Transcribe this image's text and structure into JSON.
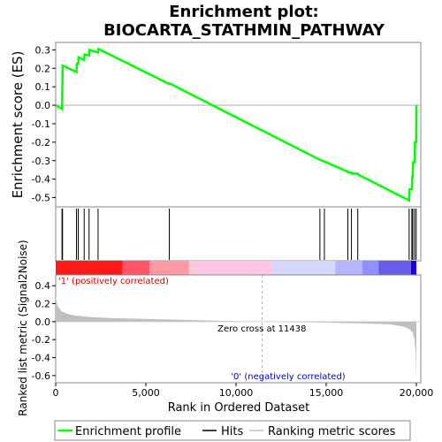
{
  "chart_data": {
    "type": "line",
    "title_line1": "Enrichment plot:",
    "title_line2": "BIOCARTA_STATHMIN_PATHWAY",
    "es_panel": {
      "ylabel": "Enrichment score (ES)",
      "ylim": [
        -0.55,
        0.34
      ],
      "yticks": [
        0.3,
        0.2,
        0.1,
        0.0,
        -0.1,
        -0.2,
        -0.3,
        -0.4,
        -0.5
      ],
      "ytick_labels": [
        "0.3",
        "0.2",
        "0.1",
        "0.0",
        "-0.1",
        "-0.2",
        "-0.3",
        "-0.4",
        "-0.5"
      ],
      "line_color": "#00ff00",
      "points": [
        [
          0,
          0.0
        ],
        [
          350,
          -0.02
        ],
        [
          360,
          0.02
        ],
        [
          380,
          0.215
        ],
        [
          1150,
          0.18
        ],
        [
          1170,
          0.225
        ],
        [
          1250,
          0.225
        ],
        [
          1270,
          0.26
        ],
        [
          1580,
          0.245
        ],
        [
          1600,
          0.275
        ],
        [
          1850,
          0.27
        ],
        [
          1870,
          0.3
        ],
        [
          2350,
          0.285
        ],
        [
          2370,
          0.305
        ],
        [
          6300,
          0.115
        ],
        [
          6320,
          0.118
        ],
        [
          14650,
          -0.295
        ],
        [
          14900,
          -0.305
        ],
        [
          14920,
          -0.305
        ],
        [
          16200,
          -0.36
        ],
        [
          16220,
          -0.365
        ],
        [
          16400,
          -0.365
        ],
        [
          16420,
          -0.37
        ],
        [
          16750,
          -0.37
        ],
        [
          16770,
          -0.375
        ],
        [
          19600,
          -0.515
        ],
        [
          19620,
          -0.455
        ],
        [
          19750,
          -0.455
        ],
        [
          19770,
          -0.385
        ],
        [
          19800,
          -0.385
        ],
        [
          19820,
          -0.31
        ],
        [
          19900,
          -0.31
        ],
        [
          19920,
          -0.2
        ],
        [
          19990,
          -0.2
        ],
        [
          20000,
          0.0
        ]
      ]
    },
    "hits": [
      350,
      380,
      1150,
      1250,
      1580,
      1850,
      2350,
      6300,
      14650,
      14900,
      16200,
      16400,
      16750,
      19600,
      19750,
      19800,
      19900,
      19990
    ],
    "metric_panel": {
      "ylabel": "Ranked list metric (Signal2Noise)",
      "ylim": [
        -0.68,
        0.52
      ],
      "yticks": [
        0.4,
        0.2,
        0.0,
        -0.2,
        -0.4,
        -0.6
      ],
      "ytick_labels": [
        "0.4",
        "0.2",
        "0.0",
        "-0.2",
        "-0.4",
        "-0.6"
      ],
      "fill_color": "#c0c0c0",
      "points": [
        [
          0,
          0.28
        ],
        [
          100,
          0.18
        ],
        [
          300,
          0.12
        ],
        [
          600,
          0.09
        ],
        [
          1000,
          0.07
        ],
        [
          2000,
          0.05
        ],
        [
          3000,
          0.04
        ],
        [
          5000,
          0.03
        ],
        [
          7000,
          0.02
        ],
        [
          9000,
          0.01
        ],
        [
          11438,
          0.0
        ],
        [
          13000,
          -0.005
        ],
        [
          15000,
          -0.01
        ],
        [
          17000,
          -0.02
        ],
        [
          18500,
          -0.03
        ],
        [
          19200,
          -0.05
        ],
        [
          19600,
          -0.08
        ],
        [
          19800,
          -0.12
        ],
        [
          19900,
          -0.2
        ],
        [
          19960,
          -0.35
        ],
        [
          20000,
          -0.65
        ]
      ],
      "zero_cross_label": "Zero cross at 11438",
      "zero_cross": 11438,
      "pos_label": "'1' (positively correlated)",
      "neg_label": "'0' (negatively correlated)",
      "pos_color": "#cc0000",
      "neg_color": "#0000cc"
    },
    "color_bar": [
      {
        "from": 0,
        "to": 3700,
        "color": "#ff1a1a"
      },
      {
        "from": 3700,
        "to": 5200,
        "color": "#ff5566"
      },
      {
        "from": 5200,
        "to": 7400,
        "color": "#ff9aa2"
      },
      {
        "from": 7400,
        "to": 12000,
        "color": "#ffc8e0"
      },
      {
        "from": 12000,
        "to": 15500,
        "color": "#d6d6ff"
      },
      {
        "from": 15500,
        "to": 17000,
        "color": "#b4b4ff"
      },
      {
        "from": 17000,
        "to": 17900,
        "color": "#9090ff"
      },
      {
        "from": 17900,
        "to": 19700,
        "color": "#6a5ae8"
      },
      {
        "from": 19700,
        "to": 20000,
        "color": "#1a00e0"
      }
    ],
    "x_axis": {
      "xlabel": "Rank in Ordered Dataset",
      "xlim": [
        0,
        20000
      ],
      "xticks": [
        0,
        5000,
        10000,
        15000,
        20000
      ],
      "xtick_labels": [
        "0",
        "5,000",
        "10,000",
        "15,000",
        "20,000"
      ]
    },
    "legend": {
      "placement": "bottom",
      "entries": [
        {
          "label": "Enrichment profile",
          "color": "#00ff00"
        },
        {
          "label": "Hits",
          "color": "#000000"
        },
        {
          "label": "Ranking metric scores",
          "color": "#c0c0c0"
        }
      ]
    }
  }
}
